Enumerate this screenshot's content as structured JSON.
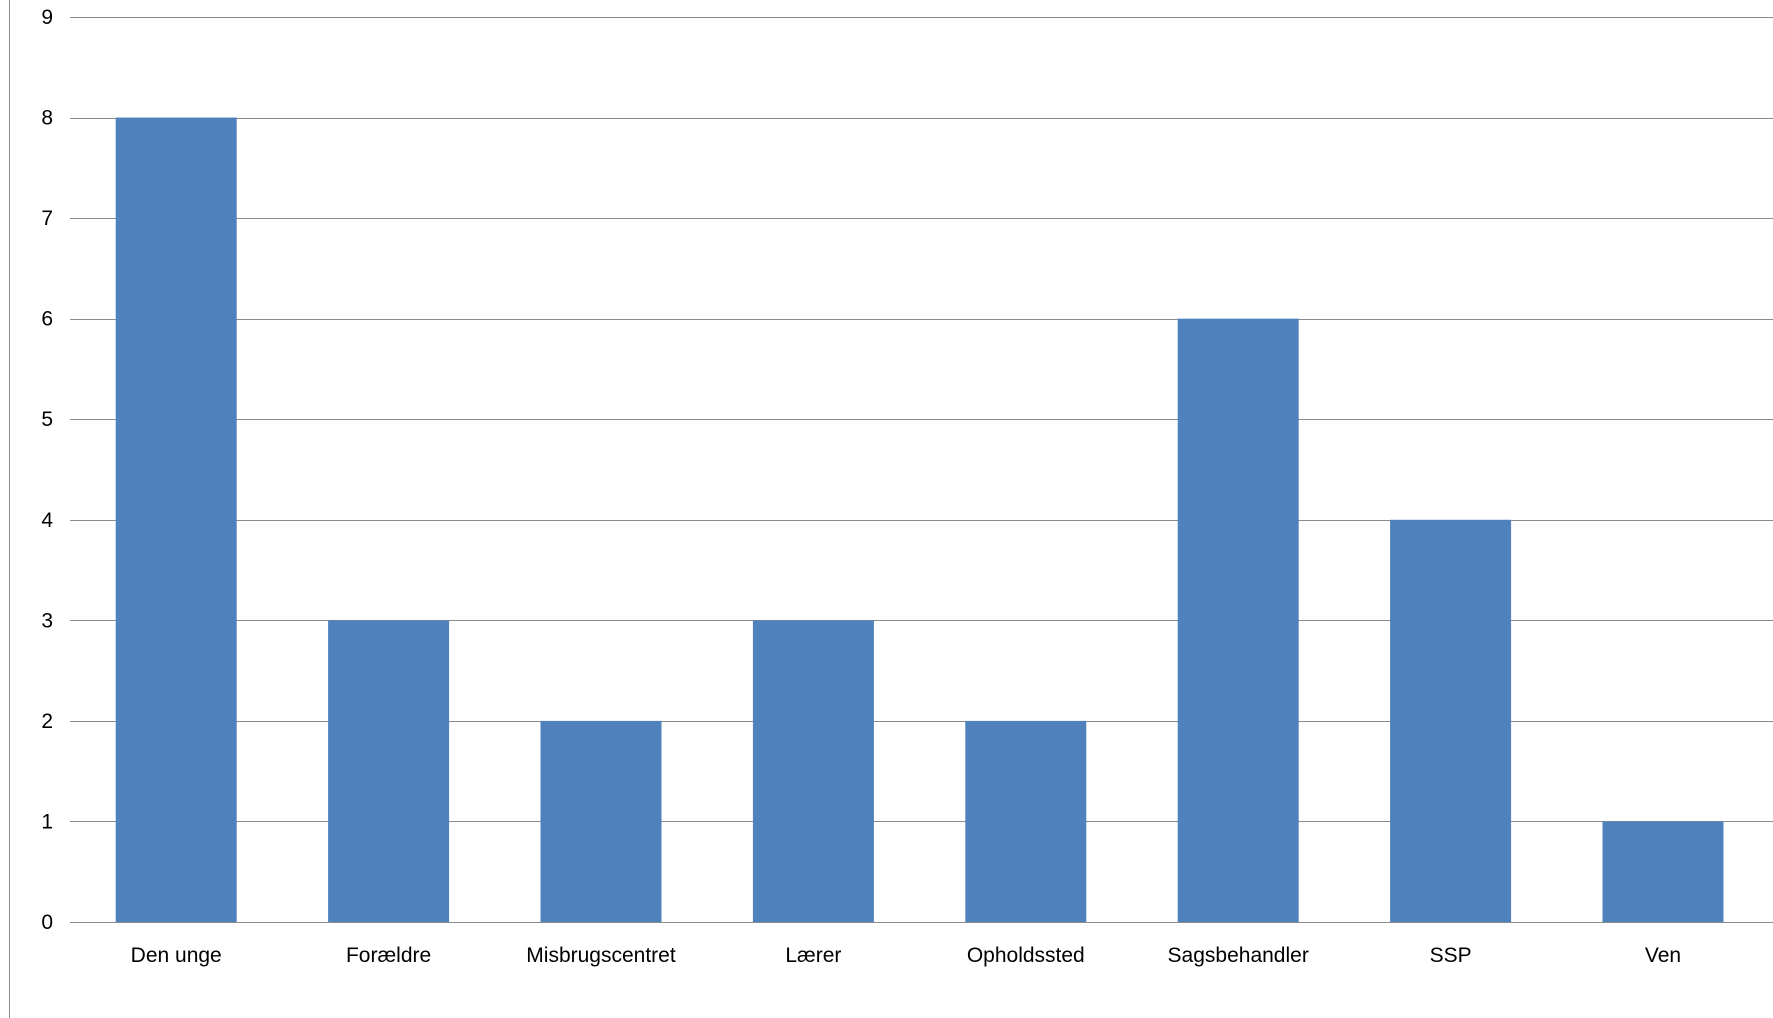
{
  "chart_data": {
    "type": "bar",
    "title": "",
    "xlabel": "",
    "ylabel": "",
    "categories": [
      "Den unge",
      "Forældre",
      "Misbrugscentret",
      "Lærer",
      "Opholdssted",
      "Sagsbehandler",
      "SSP",
      "Ven"
    ],
    "values": [
      8,
      3,
      2,
      3,
      2,
      6,
      4,
      1
    ],
    "ylim": [
      0,
      9
    ],
    "yticks": [
      "0",
      "1",
      "2",
      "3",
      "4",
      "5",
      "6",
      "7",
      "8",
      "9"
    ],
    "grid": true,
    "legend": "none",
    "bar_color": "#4F81BD",
    "grid_color": "#8C8C8C"
  }
}
